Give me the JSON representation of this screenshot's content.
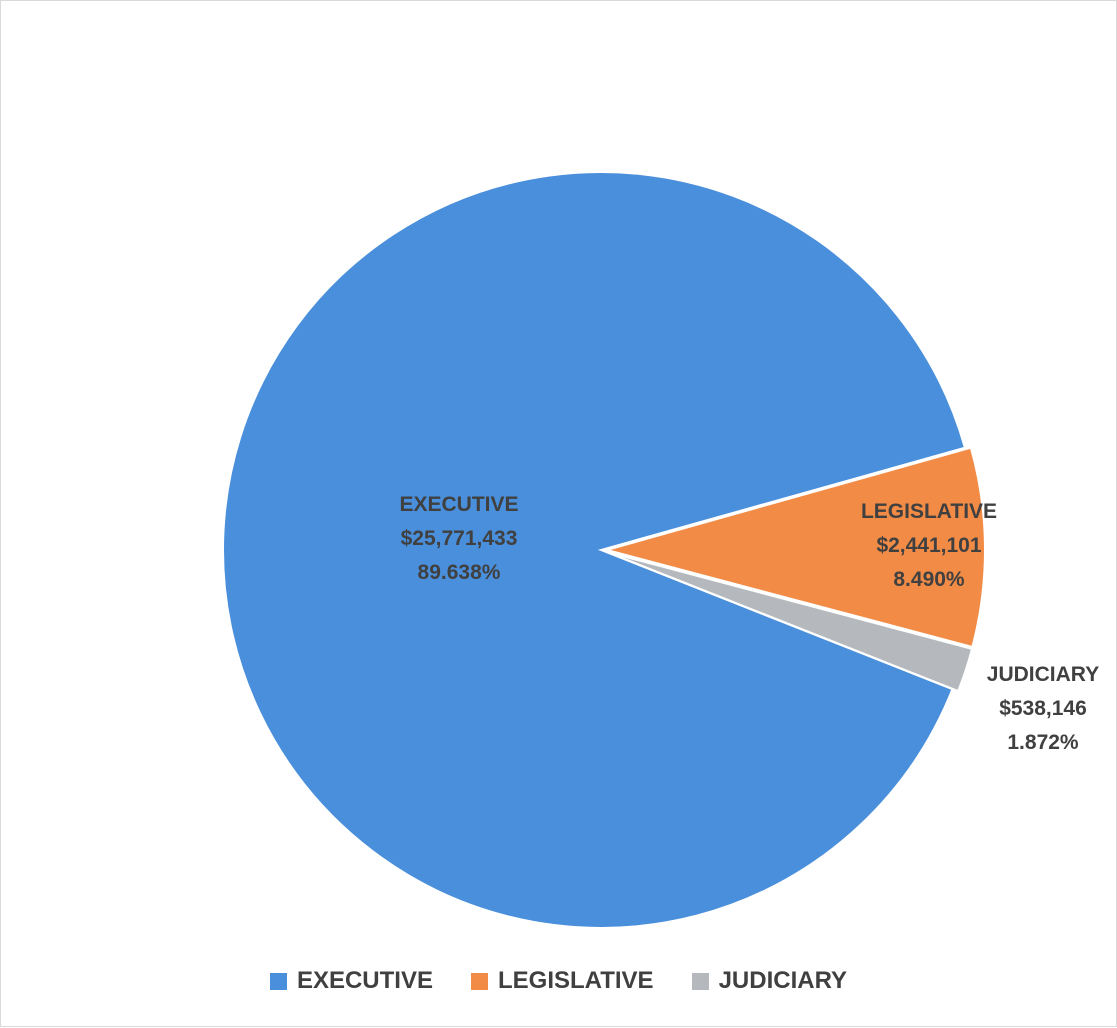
{
  "chart_data": {
    "type": "pie",
    "title": "",
    "legend_position": "bottom",
    "slices": [
      {
        "name": "EXECUTIVE",
        "amount": 25771433,
        "amount_label": "$25,771,433",
        "percent": 89.638,
        "percent_label": "89.638%",
        "color": "#4a8fdb"
      },
      {
        "name": "LEGISLATIVE",
        "amount": 2441101,
        "amount_label": "$2,441,101",
        "percent": 8.49,
        "percent_label": "8.490%",
        "color": "#f28b46"
      },
      {
        "name": "JUDICIARY",
        "amount": 538146,
        "amount_label": "$538,146",
        "percent": 1.872,
        "percent_label": "1.872%",
        "color": "#b5b9be"
      }
    ]
  }
}
